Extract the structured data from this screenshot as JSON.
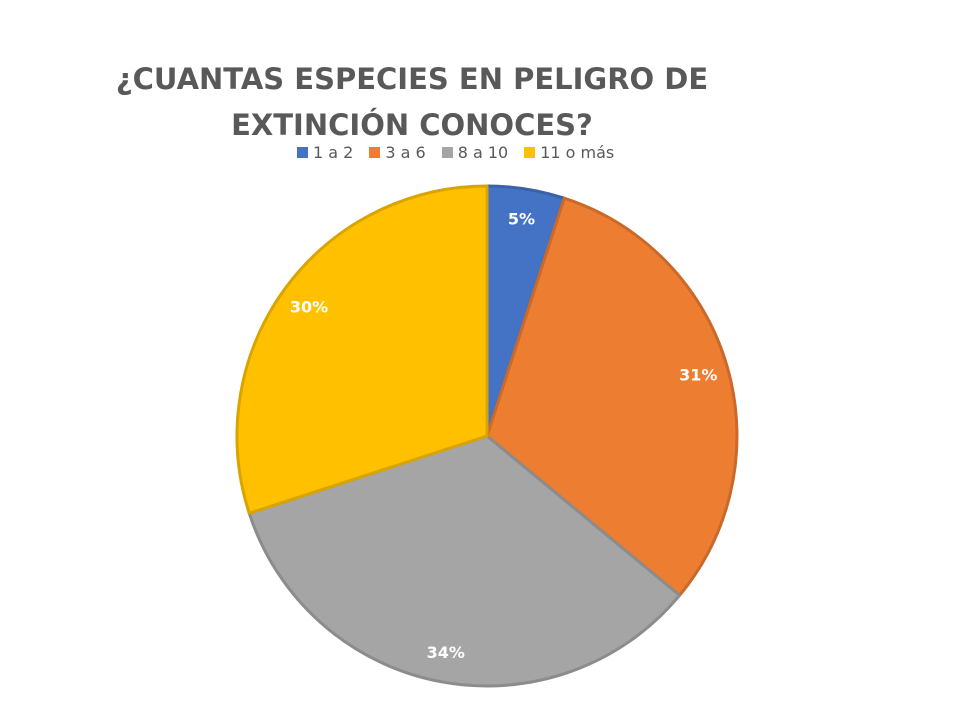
{
  "chart_data": {
    "type": "pie",
    "title_lines": [
      "¿CUANTAS ESPECIES EN PELIGRO DE",
      "EXTINCIÓN CONOCES?"
    ],
    "categories": [
      "1 a 2",
      "3 a 6",
      "8 a 10",
      "11 o más"
    ],
    "values": [
      5,
      31,
      34,
      30
    ],
    "labels": [
      "5%",
      "31%",
      "34%",
      "30%"
    ],
    "colors": [
      "#4472C4",
      "#ED7D31",
      "#A5A5A5",
      "#FFC000"
    ],
    "border_colors": [
      "#3A62A8",
      "#C9692A",
      "#8C8C8C",
      "#D9A400"
    ],
    "legend_position": "top",
    "start_angle": "12 o'clock",
    "direction": "clockwise"
  }
}
